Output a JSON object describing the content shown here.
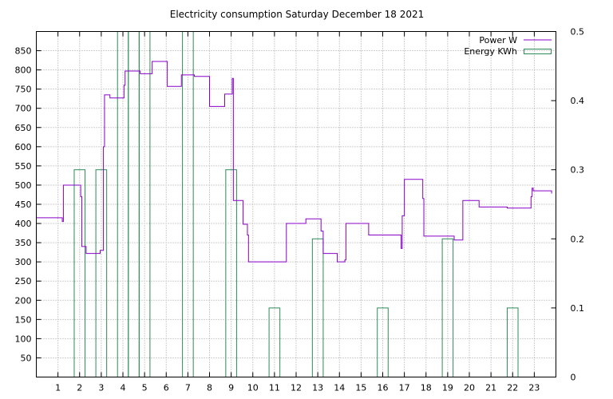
{
  "chart_data": {
    "type": "line",
    "title": "Electricity consumption Saturday December 18 2021",
    "xlabel": "",
    "ylabel": "",
    "y2label": "",
    "xlim": [
      0,
      24
    ],
    "ylim": [
      0,
      900
    ],
    "y2lim": [
      0,
      0.5
    ],
    "x_ticks": [
      1,
      2,
      3,
      4,
      5,
      6,
      7,
      8,
      9,
      10,
      11,
      12,
      13,
      14,
      15,
      16,
      17,
      18,
      19,
      20,
      21,
      22,
      23
    ],
    "y_ticks": [
      50,
      100,
      150,
      200,
      250,
      300,
      350,
      400,
      450,
      500,
      550,
      600,
      650,
      700,
      750,
      800,
      850
    ],
    "y2_ticks": [
      0,
      0.1,
      0.2,
      0.3,
      0.4,
      0.5
    ],
    "grid": true,
    "legend_position": "top-right",
    "series": [
      {
        "name": "Power W",
        "type": "step-line",
        "color": "#8a00c8",
        "axis": "left",
        "points": [
          [
            0.0,
            415
          ],
          [
            1.2,
            415
          ],
          [
            1.2,
            405
          ],
          [
            1.25,
            405
          ],
          [
            1.25,
            500
          ],
          [
            2.05,
            500
          ],
          [
            2.05,
            470
          ],
          [
            2.1,
            470
          ],
          [
            2.1,
            340
          ],
          [
            2.3,
            340
          ],
          [
            2.3,
            322
          ],
          [
            2.95,
            322
          ],
          [
            2.95,
            330
          ],
          [
            3.1,
            330
          ],
          [
            3.1,
            600
          ],
          [
            3.15,
            600
          ],
          [
            3.15,
            735
          ],
          [
            3.4,
            735
          ],
          [
            3.4,
            727
          ],
          [
            4.05,
            727
          ],
          [
            4.05,
            760
          ],
          [
            4.1,
            760
          ],
          [
            4.1,
            797
          ],
          [
            4.8,
            797
          ],
          [
            4.8,
            790
          ],
          [
            5.35,
            790
          ],
          [
            5.35,
            822
          ],
          [
            6.05,
            822
          ],
          [
            6.05,
            757
          ],
          [
            6.7,
            757
          ],
          [
            6.7,
            787
          ],
          [
            7.3,
            787
          ],
          [
            7.3,
            783
          ],
          [
            8.0,
            783
          ],
          [
            8.0,
            705
          ],
          [
            8.7,
            705
          ],
          [
            8.7,
            737
          ],
          [
            9.05,
            737
          ],
          [
            9.05,
            778
          ],
          [
            9.1,
            778
          ],
          [
            9.1,
            460
          ],
          [
            9.55,
            460
          ],
          [
            9.55,
            398
          ],
          [
            9.75,
            398
          ],
          [
            9.75,
            370
          ],
          [
            9.8,
            370
          ],
          [
            9.8,
            300
          ],
          [
            11.55,
            300
          ],
          [
            11.55,
            400
          ],
          [
            12.45,
            400
          ],
          [
            12.45,
            412
          ],
          [
            13.15,
            412
          ],
          [
            13.15,
            380
          ],
          [
            13.25,
            380
          ],
          [
            13.25,
            322
          ],
          [
            13.9,
            322
          ],
          [
            13.9,
            300
          ],
          [
            14.25,
            300
          ],
          [
            14.25,
            305
          ],
          [
            14.3,
            305
          ],
          [
            14.3,
            400
          ],
          [
            15.35,
            400
          ],
          [
            15.35,
            370
          ],
          [
            16.85,
            370
          ],
          [
            16.85,
            335
          ],
          [
            16.9,
            335
          ],
          [
            16.9,
            420
          ],
          [
            17.0,
            420
          ],
          [
            17.0,
            515
          ],
          [
            17.85,
            515
          ],
          [
            17.85,
            465
          ],
          [
            17.9,
            465
          ],
          [
            17.9,
            367
          ],
          [
            19.3,
            367
          ],
          [
            19.3,
            357
          ],
          [
            19.7,
            357
          ],
          [
            19.7,
            460
          ],
          [
            20.45,
            460
          ],
          [
            20.45,
            443
          ],
          [
            21.75,
            443
          ],
          [
            21.75,
            440
          ],
          [
            22.85,
            440
          ],
          [
            22.85,
            470
          ],
          [
            22.9,
            470
          ],
          [
            22.9,
            492
          ],
          [
            22.95,
            492
          ],
          [
            22.95,
            485
          ],
          [
            23.8,
            485
          ],
          [
            23.8,
            478
          ]
        ]
      },
      {
        "name": "Energy KWh",
        "type": "bar",
        "color": "#2e8b57",
        "axis": "right",
        "bars": [
          {
            "x": 2.0,
            "value": 0.3
          },
          {
            "x": 3.0,
            "value": 0.3
          },
          {
            "x": 4.0,
            "value": 0.5
          },
          {
            "x": 4.5,
            "value": 0.5
          },
          {
            "x": 5.0,
            "value": 0.5
          },
          {
            "x": 7.0,
            "value": 0.5
          },
          {
            "x": 9.0,
            "value": 0.3
          },
          {
            "x": 11.0,
            "value": 0.1
          },
          {
            "x": 13.0,
            "value": 0.2
          },
          {
            "x": 16.0,
            "value": 0.1
          },
          {
            "x": 19.0,
            "value": 0.2
          },
          {
            "x": 22.0,
            "value": 0.1
          }
        ],
        "bar_width": 0.5
      }
    ]
  }
}
